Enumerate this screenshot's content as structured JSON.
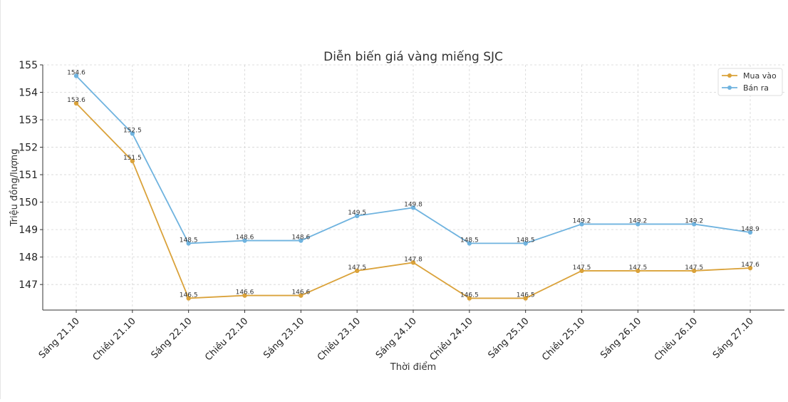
{
  "chart_data": {
    "type": "line",
    "title": "Diễn biến giá vàng miếng SJC",
    "xlabel": "Thời điểm",
    "ylabel": "Triệu đồng/lượng",
    "categories": [
      "Sáng 21.10",
      "Chiều 21.10",
      "Sáng 22.10",
      "Chiều 22.10",
      "Sáng 23.10",
      "Chiều 23.10",
      "Sáng 24.10",
      "Chiều 24.10",
      "Sáng 25.10",
      "Chiều 25.10",
      "Sáng 26.10",
      "Chiều 26.10",
      "Sáng 27.10"
    ],
    "yticks": [
      147,
      148,
      149,
      150,
      151,
      152,
      153,
      154,
      155
    ],
    "ylim": [
      146.07,
      155
    ],
    "grid": true,
    "legend_position": "top-right",
    "series": [
      {
        "name": "Mua vào",
        "color": "#DAA23A",
        "values": [
          153.6,
          151.5,
          146.5,
          146.6,
          146.6,
          147.5,
          147.8,
          146.5,
          146.5,
          147.5,
          147.5,
          147.5,
          147.6
        ]
      },
      {
        "name": "Bán ra",
        "color": "#6FB3DF",
        "values": [
          154.6,
          152.5,
          148.5,
          148.6,
          148.6,
          149.5,
          149.8,
          148.5,
          148.5,
          149.2,
          149.2,
          149.2,
          148.9
        ]
      }
    ]
  }
}
